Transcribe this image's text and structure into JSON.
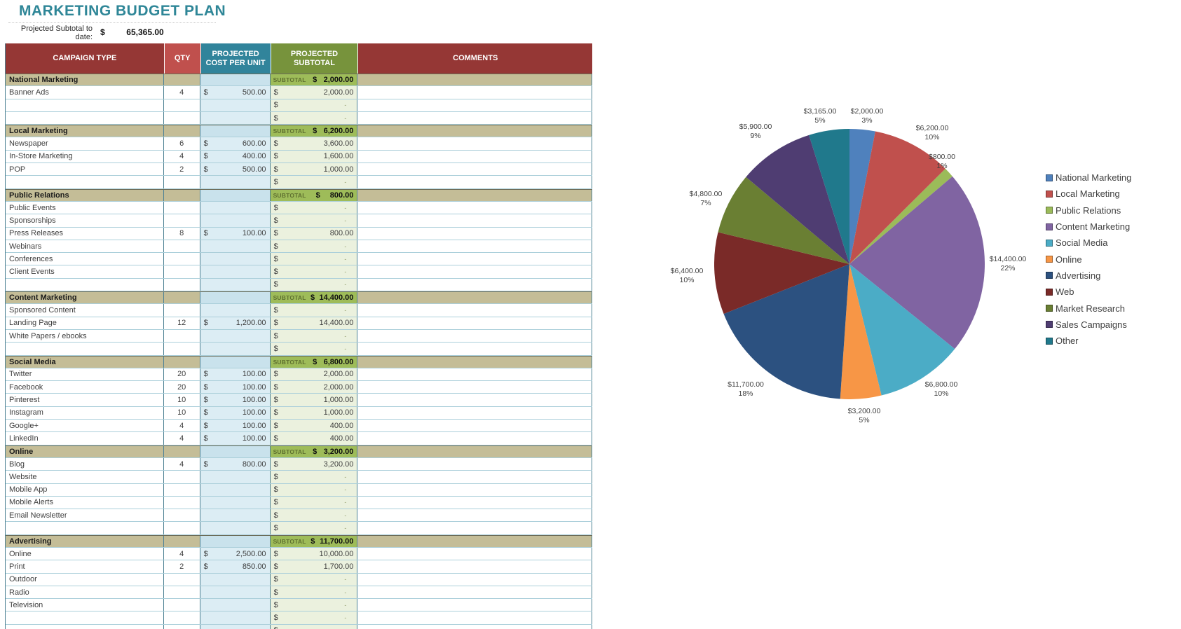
{
  "title": "MARKETING BUDGET PLAN",
  "summary": {
    "label_line1": "Projected Subtotal to",
    "label_line2": "date:",
    "currency": "$",
    "value": "65,365.00"
  },
  "table": {
    "headers": [
      "CAMPAIGN TYPE",
      "QTY",
      "PROJECTED COST PER UNIT",
      "PROJECTED SUBTOTAL",
      "COMMENTS"
    ],
    "subtotal_label": "SUBTOTAL",
    "currency": "$",
    "empty_placeholder": "-",
    "rows": [
      {
        "t": "s",
        "name": "National Marketing",
        "sub": "2,000.00"
      },
      {
        "t": "i",
        "name": "Banner Ads",
        "qty": "4",
        "cost": "500.00",
        "sub": "2,000.00"
      },
      {
        "t": "i",
        "name": "",
        "sub": "-"
      },
      {
        "t": "i",
        "name": "",
        "sub": "-"
      },
      {
        "t": "s",
        "name": "Local Marketing",
        "sub": "6,200.00"
      },
      {
        "t": "i",
        "name": "Newspaper",
        "qty": "6",
        "cost": "600.00",
        "sub": "3,600.00"
      },
      {
        "t": "i",
        "name": "In-Store Marketing",
        "qty": "4",
        "cost": "400.00",
        "sub": "1,600.00"
      },
      {
        "t": "i",
        "name": "POP",
        "qty": "2",
        "cost": "500.00",
        "sub": "1,000.00"
      },
      {
        "t": "i",
        "name": "",
        "sub": "-"
      },
      {
        "t": "s",
        "name": "Public Relations",
        "sub": "800.00"
      },
      {
        "t": "i",
        "name": "Public Events",
        "sub": "-"
      },
      {
        "t": "i",
        "name": "Sponsorships",
        "sub": "-"
      },
      {
        "t": "i",
        "name": "Press Releases",
        "qty": "8",
        "cost": "100.00",
        "sub": "800.00"
      },
      {
        "t": "i",
        "name": "Webinars",
        "sub": "-"
      },
      {
        "t": "i",
        "name": "Conferences",
        "sub": "-"
      },
      {
        "t": "i",
        "name": "Client Events",
        "sub": "-"
      },
      {
        "t": "i",
        "name": "",
        "sub": "-"
      },
      {
        "t": "s",
        "name": "Content Marketing",
        "sub": "14,400.00"
      },
      {
        "t": "i",
        "name": "Sponsored Content",
        "sub": "-"
      },
      {
        "t": "i",
        "name": "Landing Page",
        "qty": "12",
        "cost": "1,200.00",
        "sub": "14,400.00"
      },
      {
        "t": "i",
        "name": "White Papers / ebooks",
        "sub": "-"
      },
      {
        "t": "i",
        "name": "",
        "sub": "-"
      },
      {
        "t": "s",
        "name": "Social Media",
        "sub": "6,800.00"
      },
      {
        "t": "i",
        "name": "Twitter",
        "qty": "20",
        "cost": "100.00",
        "sub": "2,000.00"
      },
      {
        "t": "i",
        "name": "Facebook",
        "qty": "20",
        "cost": "100.00",
        "sub": "2,000.00"
      },
      {
        "t": "i",
        "name": "Pinterest",
        "qty": "10",
        "cost": "100.00",
        "sub": "1,000.00"
      },
      {
        "t": "i",
        "name": "Instagram",
        "qty": "10",
        "cost": "100.00",
        "sub": "1,000.00"
      },
      {
        "t": "i",
        "name": "Google+",
        "qty": "4",
        "cost": "100.00",
        "sub": "400.00"
      },
      {
        "t": "i",
        "name": "LinkedIn",
        "qty": "4",
        "cost": "100.00",
        "sub": "400.00"
      },
      {
        "t": "s",
        "name": "Online",
        "sub": "3,200.00"
      },
      {
        "t": "i",
        "name": "Blog",
        "qty": "4",
        "cost": "800.00",
        "sub": "3,200.00"
      },
      {
        "t": "i",
        "name": "Website",
        "sub": "-"
      },
      {
        "t": "i",
        "name": "Mobile App",
        "sub": "-"
      },
      {
        "t": "i",
        "name": "Mobile Alerts",
        "sub": "-"
      },
      {
        "t": "i",
        "name": "Email Newsletter",
        "sub": "-"
      },
      {
        "t": "i",
        "name": "",
        "sub": "-"
      },
      {
        "t": "s",
        "name": "Advertising",
        "sub": "11,700.00"
      },
      {
        "t": "i",
        "name": "Online",
        "qty": "4",
        "cost": "2,500.00",
        "sub": "10,000.00"
      },
      {
        "t": "i",
        "name": "Print",
        "qty": "2",
        "cost": "850.00",
        "sub": "1,700.00"
      },
      {
        "t": "i",
        "name": "Outdoor",
        "sub": "-"
      },
      {
        "t": "i",
        "name": "Radio",
        "sub": "-"
      },
      {
        "t": "i",
        "name": "Television",
        "sub": "-"
      },
      {
        "t": "i",
        "name": "",
        "sub": "-"
      },
      {
        "t": "i",
        "name": "",
        "sub": "-"
      }
    ]
  },
  "chart_data": {
    "type": "pie",
    "categories": [
      "National Marketing",
      "Local Marketing",
      "Public Relations",
      "Content Marketing",
      "Social Media",
      "Online",
      "Advertising",
      "Web",
      "Market Research",
      "Sales Campaigns",
      "Other"
    ],
    "values": [
      2000,
      6200,
      800,
      14400,
      6800,
      3200,
      11700,
      6400,
      4800,
      5900,
      3165
    ],
    "value_labels": [
      "$2,000.00",
      "$6,200.00",
      "$800.00",
      "$14,400.00",
      "$6,800.00",
      "$3,200.00",
      "$11,700.00",
      "$6,400.00",
      "$4,800.00",
      "$5,900.00",
      "$3,165.00"
    ],
    "pct_labels": [
      "3%",
      "10%",
      "1%",
      "22%",
      "10%",
      "5%",
      "18%",
      "10%",
      "7%",
      "9%",
      "5%"
    ],
    "colors": [
      "#4F81BD",
      "#C0504D",
      "#9BBB59",
      "#8064A2",
      "#4BACC6",
      "#F79646",
      "#2C5180",
      "#7A2A28",
      "#6A7F33",
      "#4F3D72",
      "#20798C"
    ],
    "total": 65365,
    "start_angle_deg": 0,
    "direction": "clockwise",
    "legend_position": "right",
    "title": ""
  },
  "colors": {
    "title_teal": "#2E8697",
    "header_maroon": "#953735",
    "header_red": "#C0504D",
    "header_teal": "#31849B",
    "header_olive": "#77933C",
    "section_tan": "#C4BD97",
    "section_cost_blue": "#C9E2EC",
    "subtotal_green": "#9EBC59",
    "subtotal_label_olive": "#5F7030",
    "cost_blue": "#DCEDF4",
    "subtotal_light_green": "#EBF1DE",
    "grid_vertical": "#4E8294",
    "grid_horizontal": "#ABCFDA",
    "section_top_line": "#6B6B57",
    "text_dark": "#3F3F3F",
    "dash_muted": "#97A171"
  }
}
